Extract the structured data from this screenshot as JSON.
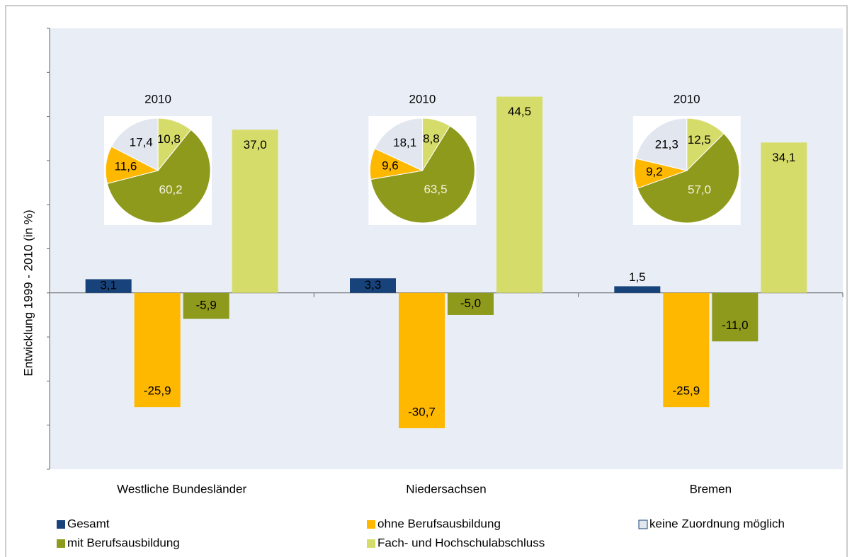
{
  "chart_data": [
    {
      "type": "bar",
      "ylabel": "Entwicklung 1999 - 2010 (in %)",
      "categories": [
        "Westliche Bundesländer",
        "Niedersachsen",
        "Bremen"
      ],
      "ylim": [
        -40,
        60
      ],
      "yticks": [
        -40,
        -30,
        -20,
        -10,
        0,
        10,
        20,
        30,
        40,
        50,
        60
      ],
      "series": [
        {
          "name": "Gesamt",
          "color": "#17427a",
          "values": [
            3.1,
            3.3,
            1.5
          ],
          "value_labels": [
            "3,1",
            "3,3",
            "1,5"
          ]
        },
        {
          "name": "ohne Berufsausbildung",
          "color": "#ffb800",
          "values": [
            -25.9,
            -30.7,
            -25.9
          ],
          "value_labels": [
            "-25,9",
            "-30,7",
            "-25,9"
          ]
        },
        {
          "name": "mit Berufsausbildung",
          "color": "#8e9a1c",
          "values": [
            -5.9,
            -5.0,
            -11.0
          ],
          "value_labels": [
            "-5,9",
            "-5,0",
            "-11,0"
          ]
        },
        {
          "name": "Fach- und Hochschulabschluss",
          "color": "#d6dc6a",
          "values": [
            37.0,
            44.5,
            34.1
          ],
          "value_labels": [
            "37,0",
            "44,5",
            "34,1"
          ]
        },
        {
          "name": "keine Zuordnung möglich",
          "color": "#e1e6ef",
          "values": [
            null,
            null,
            null
          ]
        }
      ]
    },
    {
      "type": "pie",
      "title": "2010",
      "values": [
        10.8,
        60.2,
        11.6,
        17.4
      ],
      "value_labels": [
        "10,8",
        "60,2",
        "11,6",
        "17,4"
      ],
      "colors": [
        "#d6dc6a",
        "#8e9a1c",
        "#ffb800",
        "#e1e6ef"
      ]
    },
    {
      "type": "pie",
      "title": "2010",
      "values": [
        8.8,
        63.5,
        9.6,
        18.1
      ],
      "value_labels": [
        "8,8",
        "63,5",
        "9,6",
        "18,1"
      ],
      "colors": [
        "#d6dc6a",
        "#8e9a1c",
        "#ffb800",
        "#e1e6ef"
      ]
    },
    {
      "type": "pie",
      "title": "2010",
      "values": [
        12.5,
        57.0,
        9.2,
        21.3
      ],
      "value_labels": [
        "12,5",
        "57,0",
        "9,2",
        "21,3"
      ],
      "colors": [
        "#d6dc6a",
        "#8e9a1c",
        "#ffb800",
        "#e1e6ef"
      ]
    }
  ]
}
